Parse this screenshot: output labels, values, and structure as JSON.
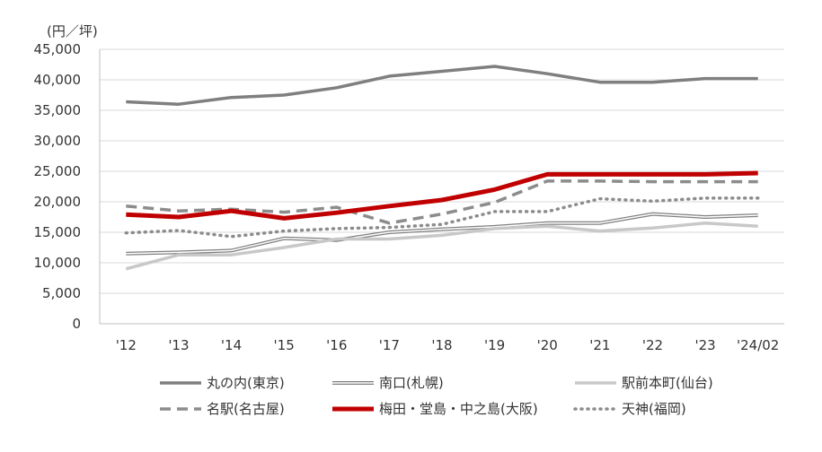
{
  "chart_data": {
    "type": "line",
    "unit_label": "(円／坪)",
    "categories": [
      "'12",
      "'13",
      "'14",
      "'15",
      "'16",
      "'17",
      "'18",
      "'19",
      "'20",
      "'21",
      "'22",
      "'23",
      "'24/02"
    ],
    "ylim": [
      0,
      45000
    ],
    "yticks": [
      "0",
      "5,000",
      "10,000",
      "15,000",
      "20,000",
      "25,000",
      "30,000",
      "35,000",
      "40,000",
      "45,000"
    ],
    "grid": true,
    "legend_position": "bottom",
    "series": [
      {
        "name": "丸の内(東京)",
        "color": "#7f7f7f",
        "style": "solid",
        "values": [
          36400,
          36000,
          37100,
          37500,
          38700,
          40600,
          41400,
          42200,
          41000,
          39600,
          39600,
          40200,
          40200
        ]
      },
      {
        "name": "南口(札幌)",
        "color": "#7f7f7f",
        "style": "double",
        "values": [
          11500,
          11700,
          12000,
          14000,
          13700,
          15000,
          15500,
          15900,
          16500,
          16500,
          18000,
          17500,
          17800
        ]
      },
      {
        "name": "駅前本町(仙台)",
        "color": "#c8c8c8",
        "style": "solid",
        "values": [
          9000,
          11300,
          11300,
          12500,
          13900,
          13900,
          14500,
          15600,
          16000,
          15200,
          15700,
          16500,
          16000
        ]
      },
      {
        "name": "名駅(名古屋)",
        "color": "#8c8c8c",
        "style": "dashed",
        "values": [
          19300,
          18500,
          18800,
          18300,
          19100,
          16500,
          18000,
          19900,
          23400,
          23400,
          23300,
          23300,
          23300
        ]
      },
      {
        "name": "梅田・堂島・中之島(大阪)",
        "color": "#c00000",
        "style": "bold",
        "values": [
          17900,
          17500,
          18500,
          17300,
          18200,
          19300,
          20300,
          22000,
          24500,
          24500,
          24500,
          24500,
          24700
        ]
      },
      {
        "name": "天神(福岡)",
        "color": "#8c8c8c",
        "style": "dotted",
        "values": [
          14900,
          15300,
          14300,
          15200,
          15600,
          15800,
          16300,
          18400,
          18400,
          20500,
          20100,
          20600,
          20600
        ]
      }
    ]
  }
}
